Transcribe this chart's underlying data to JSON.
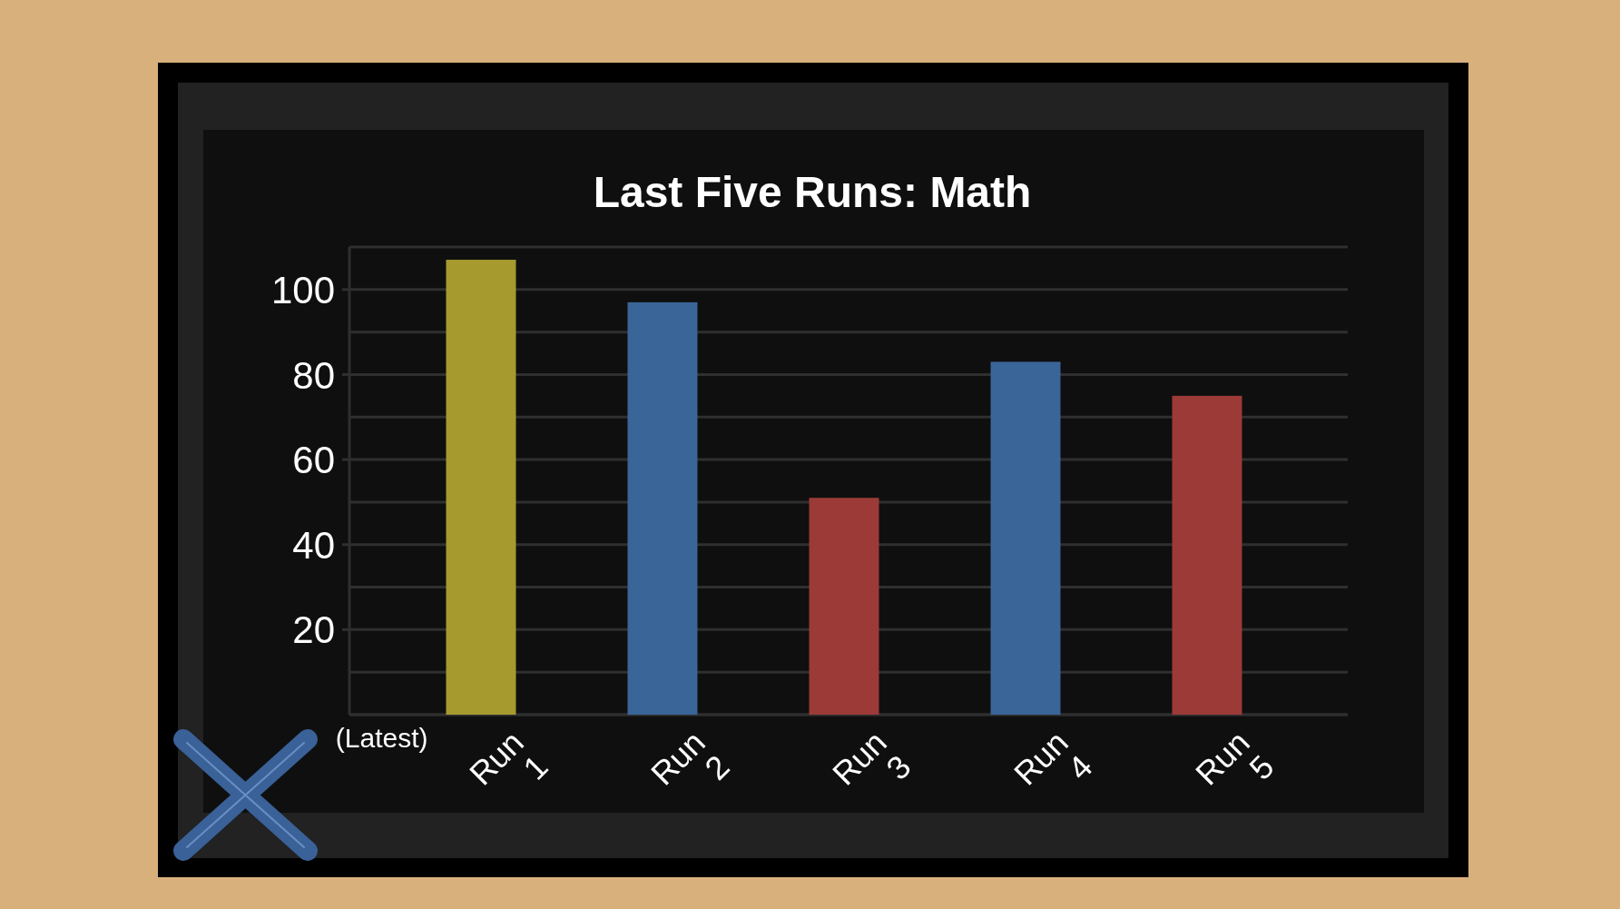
{
  "chart_data": {
    "type": "bar",
    "title": "Last Five Runs: Math",
    "categories": [
      "Run 1",
      "Run 2",
      "Run 3",
      "Run 4",
      "Run 5"
    ],
    "values": [
      107,
      97,
      51,
      83,
      75
    ],
    "colors": [
      "#a69a2e",
      "#3a6599",
      "#9c3a38",
      "#3a6599",
      "#9c3a38"
    ],
    "ylim": [
      0,
      110
    ],
    "yticks": [
      {
        "value": 0,
        "label": null
      },
      {
        "value": 10,
        "label": null
      },
      20,
      {
        "value": 30,
        "label": null
      },
      40,
      {
        "value": 50,
        "label": null
      },
      60,
      {
        "value": 70,
        "label": null
      },
      80,
      {
        "value": 90,
        "label": null
      },
      100,
      {
        "value": 110,
        "label": null
      }
    ],
    "grid": true,
    "annotations": [
      "(Latest)"
    ]
  }
}
